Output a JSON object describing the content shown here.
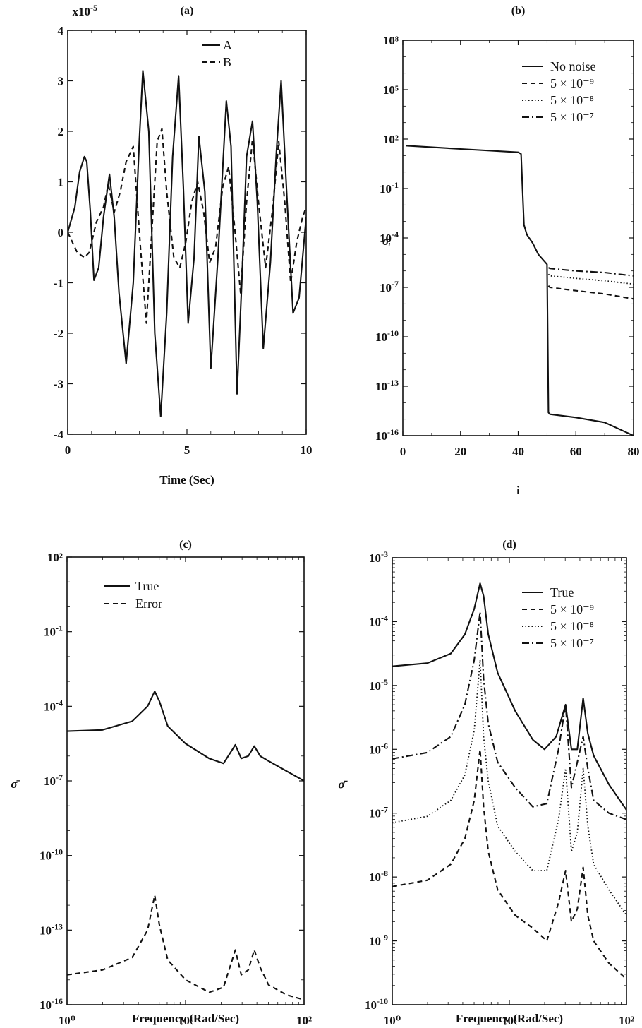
{
  "chart_data": [
    {
      "id": "a",
      "type": "line",
      "title": "(a)",
      "xlabel": "Time (Sec)",
      "ylabel": "",
      "yscale_label": "x10-5",
      "xlim": [
        0,
        10
      ],
      "ylim": [
        -4,
        4
      ],
      "xticks": [
        "0",
        "5",
        "10"
      ],
      "yticks": [
        "-4",
        "-3",
        "-2",
        "-1",
        "0",
        "1",
        "2",
        "3",
        "4"
      ],
      "legend": {
        "position": "top-center"
      },
      "series": [
        {
          "name": "A",
          "style": "solid",
          "x": [
            0,
            0.3,
            0.5,
            0.7,
            0.8,
            0.95,
            1.1,
            1.3,
            1.5,
            1.75,
            1.95,
            2.15,
            2.45,
            2.75,
            3.0,
            3.15,
            3.4,
            3.65,
            3.9,
            4.15,
            4.4,
            4.65,
            4.85,
            5.05,
            5.3,
            5.5,
            5.75,
            6.0,
            6.3,
            6.65,
            6.85,
            7.1,
            7.3,
            7.5,
            7.75,
            7.95,
            8.2,
            8.5,
            8.75,
            8.95,
            9.2,
            9.45,
            9.7,
            10.0
          ],
          "y": [
            0,
            0.5,
            1.2,
            1.5,
            1.4,
            0.4,
            -0.95,
            -0.7,
            0.3,
            1.15,
            0.3,
            -1.2,
            -2.6,
            -1.0,
            1.8,
            3.2,
            2.0,
            -2.0,
            -3.65,
            -1.6,
            1.5,
            3.1,
            0.9,
            -1.8,
            -0.5,
            1.9,
            0.8,
            -2.7,
            -0.5,
            2.6,
            1.7,
            -3.2,
            -1.0,
            1.5,
            2.2,
            0.6,
            -2.3,
            -0.6,
            1.6,
            3.0,
            0.6,
            -1.6,
            -1.3,
            0.3
          ]
        },
        {
          "name": "B",
          "style": "dashed",
          "x": [
            0,
            0.4,
            0.7,
            0.9,
            1.2,
            1.5,
            1.7,
            1.95,
            2.2,
            2.45,
            2.75,
            3.05,
            3.3,
            3.55,
            3.75,
            3.95,
            4.15,
            4.45,
            4.7,
            4.95,
            5.2,
            5.45,
            5.7,
            5.95,
            6.2,
            6.5,
            6.75,
            7.0,
            7.25,
            7.5,
            7.75,
            8.0,
            8.3,
            8.6,
            8.85,
            9.1,
            9.35,
            9.6,
            9.85,
            10.0
          ],
          "y": [
            0,
            -0.4,
            -0.5,
            -0.4,
            0.2,
            0.5,
            0.95,
            0.4,
            0.8,
            1.4,
            1.7,
            -0.3,
            -1.8,
            0.2,
            1.8,
            2.05,
            0.8,
            -0.5,
            -0.7,
            -0.2,
            0.6,
            1.0,
            0.4,
            -0.6,
            -0.3,
            0.9,
            1.3,
            0.1,
            -1.2,
            0.6,
            1.85,
            0.6,
            -0.7,
            0.5,
            1.8,
            0.6,
            -1.0,
            -0.2,
            0.3,
            0.5
          ]
        }
      ]
    },
    {
      "id": "b",
      "type": "line",
      "title": "(b)",
      "xlabel": "i",
      "ylabel": "σᵢ",
      "xlim": [
        0,
        80
      ],
      "ylim": [
        -16,
        8
      ],
      "yscale": "log",
      "xticks": [
        "0",
        "20",
        "40",
        "60",
        "80"
      ],
      "yticks": [
        "10-16",
        "10-13",
        "10-10",
        "10-7",
        "10-4",
        "10-1",
        "10²",
        "10⁵",
        "10⁸"
      ],
      "legend": {
        "position": "top-right"
      },
      "series": [
        {
          "name": "No noise",
          "style": "solid",
          "x": [
            1,
            20,
            40,
            41,
            42,
            43,
            45,
            47,
            50,
            50.5,
            51,
            60,
            70,
            75,
            80
          ],
          "y": [
            1.6,
            1.4,
            1.2,
            1.1,
            -3.2,
            -3.8,
            -4.3,
            -5.0,
            -5.6,
            -14.6,
            -14.7,
            -14.9,
            -15.2,
            -15.6,
            -16
          ]
        },
        {
          "name": "5 × 10⁻⁹",
          "style": "dashed",
          "x": [
            50.5,
            51,
            60,
            70,
            80
          ],
          "y": [
            -6.9,
            -7.0,
            -7.2,
            -7.4,
            -7.7
          ]
        },
        {
          "name": "5 × 10⁻⁸",
          "style": "dotted",
          "x": [
            50.5,
            51,
            60,
            70,
            80
          ],
          "y": [
            -6.2,
            -6.3,
            -6.45,
            -6.6,
            -6.8
          ]
        },
        {
          "name": "5 × 10⁻⁷",
          "style": "dashdot",
          "x": [
            50.5,
            51,
            60,
            70,
            80
          ],
          "y": [
            -5.8,
            -5.85,
            -6.0,
            -6.1,
            -6.3
          ]
        }
      ]
    },
    {
      "id": "c",
      "type": "line",
      "title": "(c)",
      "xlabel": "Frequency (Rad/Sec)",
      "ylabel": "σ̄",
      "xscale": "log",
      "yscale": "log",
      "xlim": [
        0,
        2
      ],
      "ylim": [
        -16,
        2
      ],
      "xticks": [
        "10⁰",
        "10¹",
        "10²"
      ],
      "yticks": [
        "10-16",
        "10-13",
        "10-10",
        "10-7",
        "10-4",
        "10-1",
        "10²"
      ],
      "legend": {
        "position": "top-left"
      },
      "series": [
        {
          "name": "True",
          "style": "solid",
          "x": [
            0,
            0.3,
            0.55,
            0.68,
            0.74,
            0.78,
            0.85,
            1.0,
            1.2,
            1.32,
            1.42,
            1.47,
            1.53,
            1.58,
            1.63,
            1.7,
            1.85,
            2.0
          ],
          "y": [
            -5.0,
            -4.95,
            -4.6,
            -4.0,
            -3.4,
            -3.8,
            -4.8,
            -5.5,
            -6.1,
            -6.3,
            -5.55,
            -6.1,
            -6.0,
            -5.6,
            -6.0,
            -6.2,
            -6.6,
            -7.0
          ]
        },
        {
          "name": "Error",
          "style": "dashed",
          "x": [
            0,
            0.3,
            0.55,
            0.68,
            0.74,
            0.78,
            0.85,
            1.0,
            1.2,
            1.32,
            1.42,
            1.47,
            1.53,
            1.58,
            1.63,
            1.7,
            1.85,
            2.0
          ],
          "y": [
            -14.8,
            -14.6,
            -14.1,
            -13.0,
            -11.6,
            -12.8,
            -14.2,
            -15.0,
            -15.5,
            -15.3,
            -13.8,
            -14.8,
            -14.6,
            -13.8,
            -14.5,
            -15.2,
            -15.6,
            -15.8
          ]
        }
      ]
    },
    {
      "id": "d",
      "type": "line",
      "title": "(d)",
      "xlabel": "Frequency (Rad/Sec)",
      "ylabel": "σ̄",
      "xscale": "log",
      "yscale": "log",
      "xlim": [
        0,
        2
      ],
      "ylim": [
        -10,
        -3
      ],
      "xticks": [
        "10⁰",
        "10¹",
        "10²"
      ],
      "yticks": [
        "10-10",
        "10-9",
        "10-8",
        "10-7",
        "10-6",
        "10-5",
        "10-4",
        "10-3"
      ],
      "legend": {
        "position": "top-right"
      },
      "series": [
        {
          "name": "True",
          "style": "solid",
          "x": [
            0,
            0.3,
            0.5,
            0.62,
            0.7,
            0.75,
            0.78,
            0.82,
            0.9,
            1.05,
            1.2,
            1.3,
            1.4,
            1.48,
            1.53,
            1.58,
            1.63,
            1.67,
            1.72,
            1.85,
            2.0
          ],
          "y": [
            -4.7,
            -4.65,
            -4.5,
            -4.2,
            -3.8,
            -3.4,
            -3.6,
            -4.2,
            -4.8,
            -5.4,
            -5.85,
            -6.0,
            -5.8,
            -5.3,
            -6.0,
            -6.0,
            -5.2,
            -5.75,
            -6.1,
            -6.55,
            -6.95
          ]
        },
        {
          "name": "5 × 10⁻⁹",
          "style": "dashed",
          "x": [
            0,
            0.3,
            0.5,
            0.62,
            0.7,
            0.75,
            0.78,
            0.82,
            0.9,
            1.05,
            1.2,
            1.32,
            1.42,
            1.48,
            1.53,
            1.58,
            1.63,
            1.67,
            1.72,
            1.85,
            2.0
          ],
          "y": [
            -8.15,
            -8.05,
            -7.8,
            -7.4,
            -6.8,
            -6.0,
            -6.9,
            -7.6,
            -8.2,
            -8.6,
            -8.8,
            -9.0,
            -8.4,
            -7.9,
            -8.7,
            -8.5,
            -7.85,
            -8.6,
            -9.0,
            -9.35,
            -9.6
          ]
        },
        {
          "name": "5 × 10⁻⁸",
          "style": "dotted",
          "x": [
            0,
            0.3,
            0.5,
            0.62,
            0.7,
            0.75,
            0.78,
            0.82,
            0.9,
            1.05,
            1.2,
            1.32,
            1.42,
            1.48,
            1.53,
            1.58,
            1.63,
            1.67,
            1.72,
            1.85,
            2.0
          ],
          "y": [
            -7.15,
            -7.05,
            -6.8,
            -6.4,
            -5.7,
            -4.6,
            -5.8,
            -6.5,
            -7.2,
            -7.6,
            -7.9,
            -7.9,
            -7.1,
            -6.3,
            -7.6,
            -7.3,
            -6.3,
            -7.2,
            -7.8,
            -8.2,
            -8.6
          ]
        },
        {
          "name": "5 × 10⁻⁷",
          "style": "dashdot",
          "x": [
            0,
            0.3,
            0.5,
            0.62,
            0.7,
            0.75,
            0.78,
            0.82,
            0.9,
            1.05,
            1.2,
            1.32,
            1.42,
            1.48,
            1.53,
            1.58,
            1.63,
            1.67,
            1.72,
            1.85,
            2.0
          ],
          "y": [
            -6.15,
            -6.05,
            -5.8,
            -5.3,
            -4.6,
            -3.85,
            -4.9,
            -5.6,
            -6.2,
            -6.6,
            -6.9,
            -6.85,
            -6.0,
            -5.3,
            -6.6,
            -6.2,
            -5.8,
            -6.3,
            -6.8,
            -7.0,
            -7.1
          ]
        }
      ]
    }
  ]
}
